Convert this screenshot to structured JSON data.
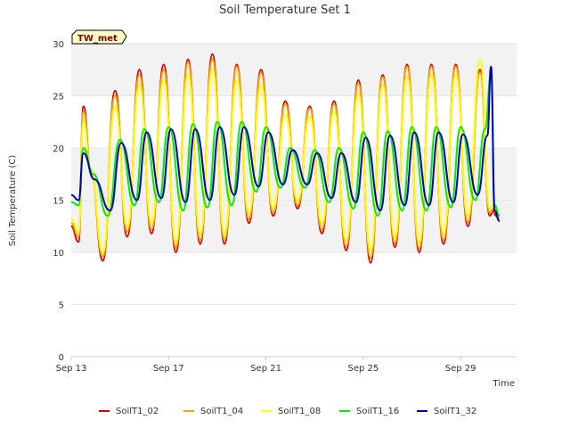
{
  "chart_data": {
    "type": "line",
    "title": "Soil Temperature Set 1",
    "xlabel": "Time",
    "ylabel": "Soil Temperature (C)",
    "badge": "TW_met",
    "x_start_date": "Sep 13",
    "x_tick_labels": [
      "Sep 13",
      "Sep 17",
      "Sep 21",
      "Sep 25",
      "Sep 29"
    ],
    "x_range_days": [
      0,
      18.3
    ],
    "xtick_days": [
      0,
      4,
      8,
      12,
      16
    ],
    "ylim": [
      0,
      30
    ],
    "yticks": [
      0,
      5,
      10,
      15,
      20,
      25,
      30
    ],
    "grid": "horizontal-bands",
    "legend_position": "bottom",
    "colors": {
      "band": "#f2f2f2",
      "axis": "#cccccc",
      "badge_bg": "#ffffcc"
    },
    "series": [
      {
        "name": "SoilT1_02",
        "color": "#dd0000",
        "x": [
          0.0,
          0.3,
          0.5,
          0.8,
          1.3,
          1.8,
          2.3,
          2.8,
          3.3,
          3.8,
          4.3,
          4.8,
          5.3,
          5.8,
          6.3,
          6.8,
          7.3,
          7.8,
          8.3,
          8.8,
          9.3,
          9.8,
          10.3,
          10.8,
          11.3,
          11.8,
          12.3,
          12.8,
          13.3,
          13.8,
          14.3,
          14.8,
          15.3,
          15.8,
          16.3,
          16.8,
          17.2,
          17.35,
          17.45,
          17.6
        ],
        "y": [
          12.5,
          11.0,
          24.0,
          18.0,
          9.2,
          25.5,
          11.5,
          27.5,
          11.8,
          28.0,
          10.0,
          28.5,
          10.8,
          29.0,
          10.8,
          28.0,
          12.8,
          27.5,
          13.5,
          24.5,
          14.2,
          24.0,
          11.8,
          24.5,
          10.2,
          26.5,
          9.0,
          27.0,
          10.5,
          28.0,
          10.0,
          28.0,
          10.8,
          28.0,
          12.5,
          27.5,
          13.5,
          14.0,
          13.5,
          13.0
        ]
      },
      {
        "name": "SoilT1_04",
        "color": "#ffa500",
        "x": [
          0.0,
          0.3,
          0.5,
          0.8,
          1.3,
          1.8,
          2.3,
          2.8,
          3.3,
          3.8,
          4.3,
          4.8,
          5.3,
          5.8,
          6.3,
          6.8,
          7.3,
          7.8,
          8.3,
          8.8,
          9.3,
          9.8,
          10.3,
          10.8,
          11.3,
          11.8,
          12.3,
          12.8,
          13.3,
          13.8,
          14.3,
          14.8,
          15.3,
          15.8,
          16.3,
          16.8,
          17.2,
          17.35,
          17.45,
          17.6
        ],
        "y": [
          12.8,
          11.5,
          23.5,
          18.0,
          9.6,
          25.0,
          12.0,
          27.0,
          12.2,
          27.5,
          10.5,
          28.2,
          11.2,
          28.5,
          11.2,
          27.8,
          13.2,
          27.2,
          13.8,
          24.2,
          14.5,
          23.8,
          12.2,
          24.2,
          10.6,
          26.2,
          9.5,
          26.8,
          10.9,
          27.8,
          10.4,
          27.8,
          11.2,
          27.8,
          12.9,
          27.2,
          13.8,
          14.2,
          13.8,
          13.2
        ]
      },
      {
        "name": "SoilT1_08",
        "color": "#ffff00",
        "x": [
          0.0,
          0.3,
          0.5,
          0.8,
          1.3,
          1.8,
          2.3,
          2.8,
          3.3,
          3.8,
          4.3,
          4.8,
          5.3,
          5.8,
          6.3,
          6.8,
          7.3,
          7.8,
          8.3,
          8.8,
          9.3,
          9.8,
          10.3,
          10.8,
          11.3,
          11.8,
          12.3,
          12.8,
          13.3,
          13.8,
          14.3,
          14.8,
          15.3,
          15.8,
          16.3,
          16.8,
          17.2,
          17.35,
          17.45,
          17.6
        ],
        "y": [
          13.2,
          12.0,
          22.5,
          18.0,
          10.0,
          24.0,
          12.5,
          26.0,
          12.8,
          26.5,
          11.0,
          27.0,
          11.8,
          27.5,
          11.8,
          26.5,
          13.8,
          26.0,
          14.3,
          23.2,
          15.0,
          23.0,
          12.8,
          23.5,
          11.2,
          25.2,
          10.2,
          26.0,
          11.5,
          26.8,
          11.0,
          27.0,
          11.8,
          27.0,
          13.5,
          28.5,
          14.2,
          14.5,
          14.0,
          13.5
        ]
      },
      {
        "name": "SoilT1_16",
        "color": "#00ee00",
        "x": [
          0.0,
          0.3,
          0.5,
          0.9,
          1.5,
          2.0,
          2.6,
          3.0,
          3.6,
          4.0,
          4.6,
          5.0,
          5.6,
          6.0,
          6.6,
          7.0,
          7.6,
          8.0,
          8.6,
          9.0,
          9.6,
          10.0,
          10.6,
          11.0,
          11.6,
          12.0,
          12.6,
          13.0,
          13.6,
          14.0,
          14.6,
          15.0,
          15.6,
          16.0,
          16.6,
          17.0,
          17.25,
          17.4,
          17.6
        ],
        "y": [
          14.8,
          14.5,
          20.0,
          17.5,
          13.5,
          20.8,
          14.5,
          21.8,
          14.8,
          22.0,
          14.0,
          22.3,
          14.3,
          22.5,
          14.5,
          22.5,
          15.8,
          22.0,
          16.2,
          20.0,
          16.2,
          19.8,
          14.8,
          20.0,
          14.2,
          21.5,
          13.5,
          21.6,
          14.0,
          22.0,
          14.0,
          22.0,
          14.3,
          22.0,
          15.0,
          21.8,
          27.0,
          14.5,
          13.5
        ]
      },
      {
        "name": "SoilT1_32",
        "color": "#0000bb",
        "x": [
          0.0,
          0.3,
          0.5,
          0.95,
          1.6,
          2.05,
          2.7,
          3.1,
          3.7,
          4.1,
          4.7,
          5.1,
          5.7,
          6.1,
          6.7,
          7.1,
          7.7,
          8.1,
          8.7,
          9.1,
          9.7,
          10.1,
          10.7,
          11.1,
          11.7,
          12.1,
          12.7,
          13.1,
          13.7,
          14.1,
          14.7,
          15.1,
          15.7,
          16.1,
          16.7,
          17.1,
          17.25,
          17.4,
          17.6
        ],
        "y": [
          15.5,
          15.0,
          19.5,
          17.0,
          14.0,
          20.5,
          15.0,
          21.5,
          15.2,
          21.8,
          14.8,
          21.8,
          15.0,
          22.0,
          15.5,
          22.0,
          16.3,
          21.5,
          16.5,
          19.8,
          16.5,
          19.5,
          15.2,
          19.5,
          14.8,
          21.0,
          14.0,
          21.2,
          14.5,
          21.5,
          14.5,
          21.5,
          14.8,
          21.3,
          15.5,
          21.2,
          27.8,
          14.0,
          13.0
        ]
      }
    ]
  }
}
